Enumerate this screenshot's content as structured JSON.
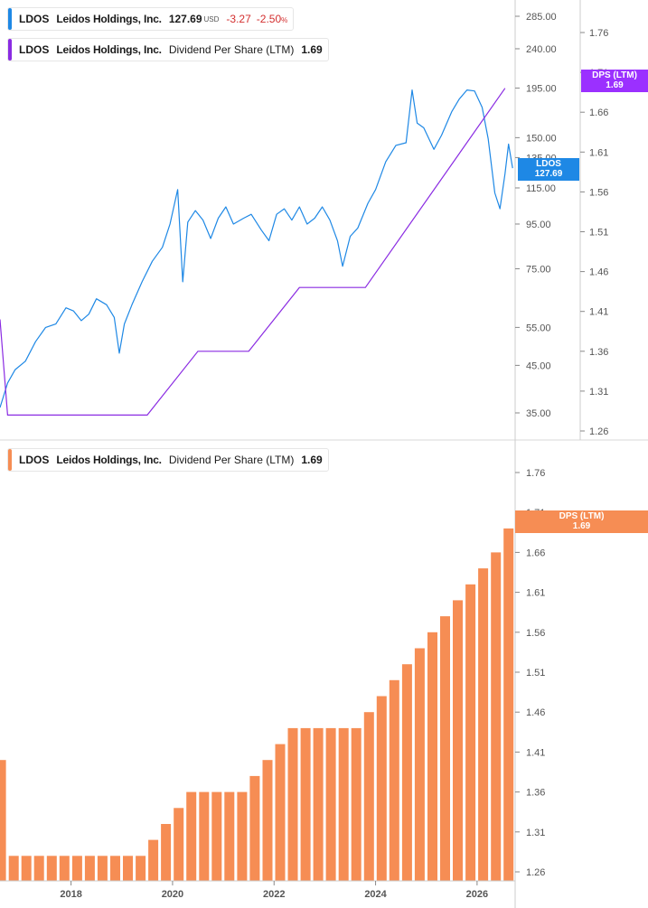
{
  "colors": {
    "price_line": "#1e88e5",
    "dps_line": "#8a2be2",
    "dps_bar": "#f68d54",
    "ldos_tag": "#1e88e5",
    "dps_tag_top": "#9b30ff",
    "dps_tag_bottom": "#f68d54",
    "negative": "#d32f2f",
    "axis": "#555555"
  },
  "top_legend_1": {
    "ticker": "LDOS",
    "name": "Leidos Holdings, Inc.",
    "price": "127.69",
    "currency": "USD",
    "change": "-3.27",
    "change_pct": "-2.50",
    "pct_sign": "%"
  },
  "top_legend_2": {
    "ticker": "LDOS",
    "name": "Leidos Holdings, Inc.",
    "metric": "Dividend Per Share (LTM)",
    "value": "1.69"
  },
  "bottom_legend": {
    "ticker": "LDOS",
    "name": "Leidos Holdings, Inc.",
    "metric": "Dividend Per Share (LTM)",
    "value": "1.69"
  },
  "tags": {
    "ldos_label": "LDOS",
    "ldos_value": "127.69",
    "dps_top_label": "DPS (LTM)",
    "dps_top_value": "1.69",
    "dps_bottom_label": "DPS (LTM)",
    "dps_bottom_value": "1.69"
  },
  "chart_data": [
    {
      "type": "line",
      "y_scale": "log",
      "x_range": [
        2016.6,
        2026.75
      ],
      "price_axis_ticks": [
        285,
        240,
        195,
        150,
        135,
        115,
        95,
        75,
        55,
        45,
        35
      ],
      "price_axis_tick_labels": [
        "285.00",
        "240.00",
        "195.00",
        "150.00",
        "135.00",
        "115.00",
        "95.00",
        "75.00",
        "55.00",
        "45.00",
        "35.00"
      ],
      "dps_axis_ticks": [
        1.76,
        1.71,
        1.66,
        1.61,
        1.56,
        1.51,
        1.46,
        1.41,
        1.36,
        1.31,
        1.26
      ],
      "dps_axis_tick_labels": [
        "1.76",
        "1.71",
        "1.66",
        "1.61",
        "1.56",
        "1.51",
        "1.46",
        "1.41",
        "1.36",
        "1.31",
        "1.26"
      ],
      "series": [
        {
          "name": "LDOS",
          "points": [
            [
              2016.6,
              36
            ],
            [
              2016.75,
              41
            ],
            [
              2016.9,
              44
            ],
            [
              2017.1,
              46
            ],
            [
              2017.3,
              51
            ],
            [
              2017.5,
              55
            ],
            [
              2017.7,
              56
            ],
            [
              2017.9,
              61
            ],
            [
              2018.05,
              60
            ],
            [
              2018.2,
              57
            ],
            [
              2018.35,
              59
            ],
            [
              2018.5,
              64
            ],
            [
              2018.7,
              62
            ],
            [
              2018.85,
              58
            ],
            [
              2018.95,
              48
            ],
            [
              2019.05,
              56
            ],
            [
              2019.2,
              62
            ],
            [
              2019.4,
              70
            ],
            [
              2019.6,
              78
            ],
            [
              2019.8,
              84
            ],
            [
              2019.95,
              95
            ],
            [
              2020.1,
              114
            ],
            [
              2020.2,
              70
            ],
            [
              2020.3,
              96
            ],
            [
              2020.45,
              102
            ],
            [
              2020.6,
              97
            ],
            [
              2020.75,
              88
            ],
            [
              2020.9,
              98
            ],
            [
              2021.05,
              104
            ],
            [
              2021.2,
              95
            ],
            [
              2021.4,
              98
            ],
            [
              2021.55,
              100
            ],
            [
              2021.75,
              92
            ],
            [
              2021.9,
              87
            ],
            [
              2022.05,
              100
            ],
            [
              2022.2,
              103
            ],
            [
              2022.35,
              97
            ],
            [
              2022.5,
              104
            ],
            [
              2022.65,
              95
            ],
            [
              2022.8,
              98
            ],
            [
              2022.95,
              104
            ],
            [
              2023.1,
              97
            ],
            [
              2023.25,
              87
            ],
            [
              2023.35,
              76
            ],
            [
              2023.5,
              89
            ],
            [
              2023.65,
              93
            ],
            [
              2023.85,
              106
            ],
            [
              2024.0,
              114
            ],
            [
              2024.2,
              132
            ],
            [
              2024.4,
              144
            ],
            [
              2024.6,
              146
            ],
            [
              2024.72,
              193
            ],
            [
              2024.82,
              162
            ],
            [
              2024.95,
              158
            ],
            [
              2025.15,
              141
            ],
            [
              2025.3,
              152
            ],
            [
              2025.5,
              172
            ],
            [
              2025.65,
              184
            ],
            [
              2025.8,
              193
            ],
            [
              2025.95,
              192
            ],
            [
              2026.1,
              176
            ],
            [
              2026.22,
              149
            ],
            [
              2026.35,
              112
            ],
            [
              2026.45,
              103
            ],
            [
              2026.55,
              124
            ],
            [
              2026.62,
              145
            ],
            [
              2026.7,
              127.69
            ]
          ]
        },
        {
          "name": "DPS (LTM)",
          "points": [
            [
              2016.6,
              1.4
            ],
            [
              2016.75,
              1.28
            ],
            [
              2019.5,
              1.28
            ],
            [
              2020.5,
              1.36
            ],
            [
              2021.5,
              1.36
            ],
            [
              2022.5,
              1.44
            ],
            [
              2023.8,
              1.44
            ],
            [
              2026.55,
              1.69
            ]
          ]
        }
      ]
    },
    {
      "type": "bar",
      "x_ticks": [
        2018,
        2020,
        2022,
        2024,
        2026
      ],
      "x_tick_labels": [
        "2018",
        "2020",
        "2022",
        "2024",
        "2026"
      ],
      "y_ticks": [
        1.76,
        1.71,
        1.66,
        1.61,
        1.56,
        1.51,
        1.46,
        1.41,
        1.36,
        1.31,
        1.26
      ],
      "y_tick_labels": [
        "1.76",
        "1.71",
        "1.66",
        "1.61",
        "1.56",
        "1.51",
        "1.46",
        "1.41",
        "1.36",
        "1.31",
        "1.26"
      ],
      "series": [
        {
          "name": "DPS (LTM)",
          "x": [
            2016.62,
            2016.87,
            2017.12,
            2017.37,
            2017.62,
            2017.87,
            2018.12,
            2018.37,
            2018.62,
            2018.87,
            2019.12,
            2019.37,
            2019.62,
            2019.87,
            2020.12,
            2020.37,
            2020.62,
            2020.87,
            2021.12,
            2021.37,
            2021.62,
            2021.87,
            2022.12,
            2022.37,
            2022.62,
            2022.87,
            2023.12,
            2023.37,
            2023.62,
            2023.87,
            2024.12,
            2024.37,
            2024.62,
            2024.87,
            2025.12,
            2025.37,
            2025.62,
            2025.87,
            2026.12,
            2026.37,
            2026.62
          ],
          "values": [
            1.4,
            1.28,
            1.28,
            1.28,
            1.28,
            1.28,
            1.28,
            1.28,
            1.28,
            1.28,
            1.28,
            1.28,
            1.3,
            1.32,
            1.34,
            1.36,
            1.36,
            1.36,
            1.36,
            1.36,
            1.38,
            1.4,
            1.42,
            1.44,
            1.44,
            1.44,
            1.44,
            1.44,
            1.44,
            1.46,
            1.48,
            1.5,
            1.52,
            1.54,
            1.56,
            1.58,
            1.6,
            1.62,
            1.64,
            1.66,
            1.69
          ]
        }
      ]
    }
  ]
}
